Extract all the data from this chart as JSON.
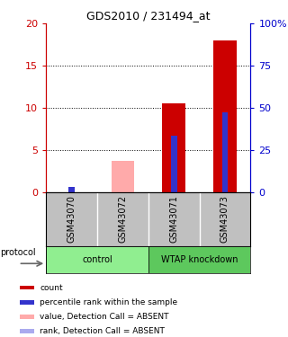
{
  "title": "GDS2010 / 231494_at",
  "samples": [
    "GSM43070",
    "GSM43072",
    "GSM43071",
    "GSM43073"
  ],
  "ylim_left": [
    0,
    20
  ],
  "ylim_right": [
    0,
    100
  ],
  "yticks_left": [
    0,
    5,
    10,
    15,
    20
  ],
  "yticks_right": [
    0,
    25,
    50,
    75,
    100
  ],
  "ytick_labels_right": [
    "0",
    "25",
    "50",
    "75",
    "100%"
  ],
  "red_bars": [
    0,
    0,
    10.5,
    18.0
  ],
  "blue_bars": [
    0.65,
    0,
    6.7,
    9.5
  ],
  "pink_bars": [
    0,
    3.7,
    0,
    0
  ],
  "lightblue_bars": [
    0,
    0,
    0,
    0
  ],
  "red_color": "#CC0000",
  "blue_color": "#3333CC",
  "pink_color": "#FFAAAA",
  "lightblue_color": "#AAAAEE",
  "legend_items": [
    {
      "color": "#CC0000",
      "label": "count"
    },
    {
      "color": "#3333CC",
      "label": "percentile rank within the sample"
    },
    {
      "color": "#FFAAAA",
      "label": "value, Detection Call = ABSENT"
    },
    {
      "color": "#AAAAEE",
      "label": "rank, Detection Call = ABSENT"
    }
  ],
  "left_axis_color": "#CC0000",
  "right_axis_color": "#0000CC",
  "gray_bg": "#C0C0C0",
  "green_light": "#90EE90",
  "green_dark": "#5DC85D"
}
